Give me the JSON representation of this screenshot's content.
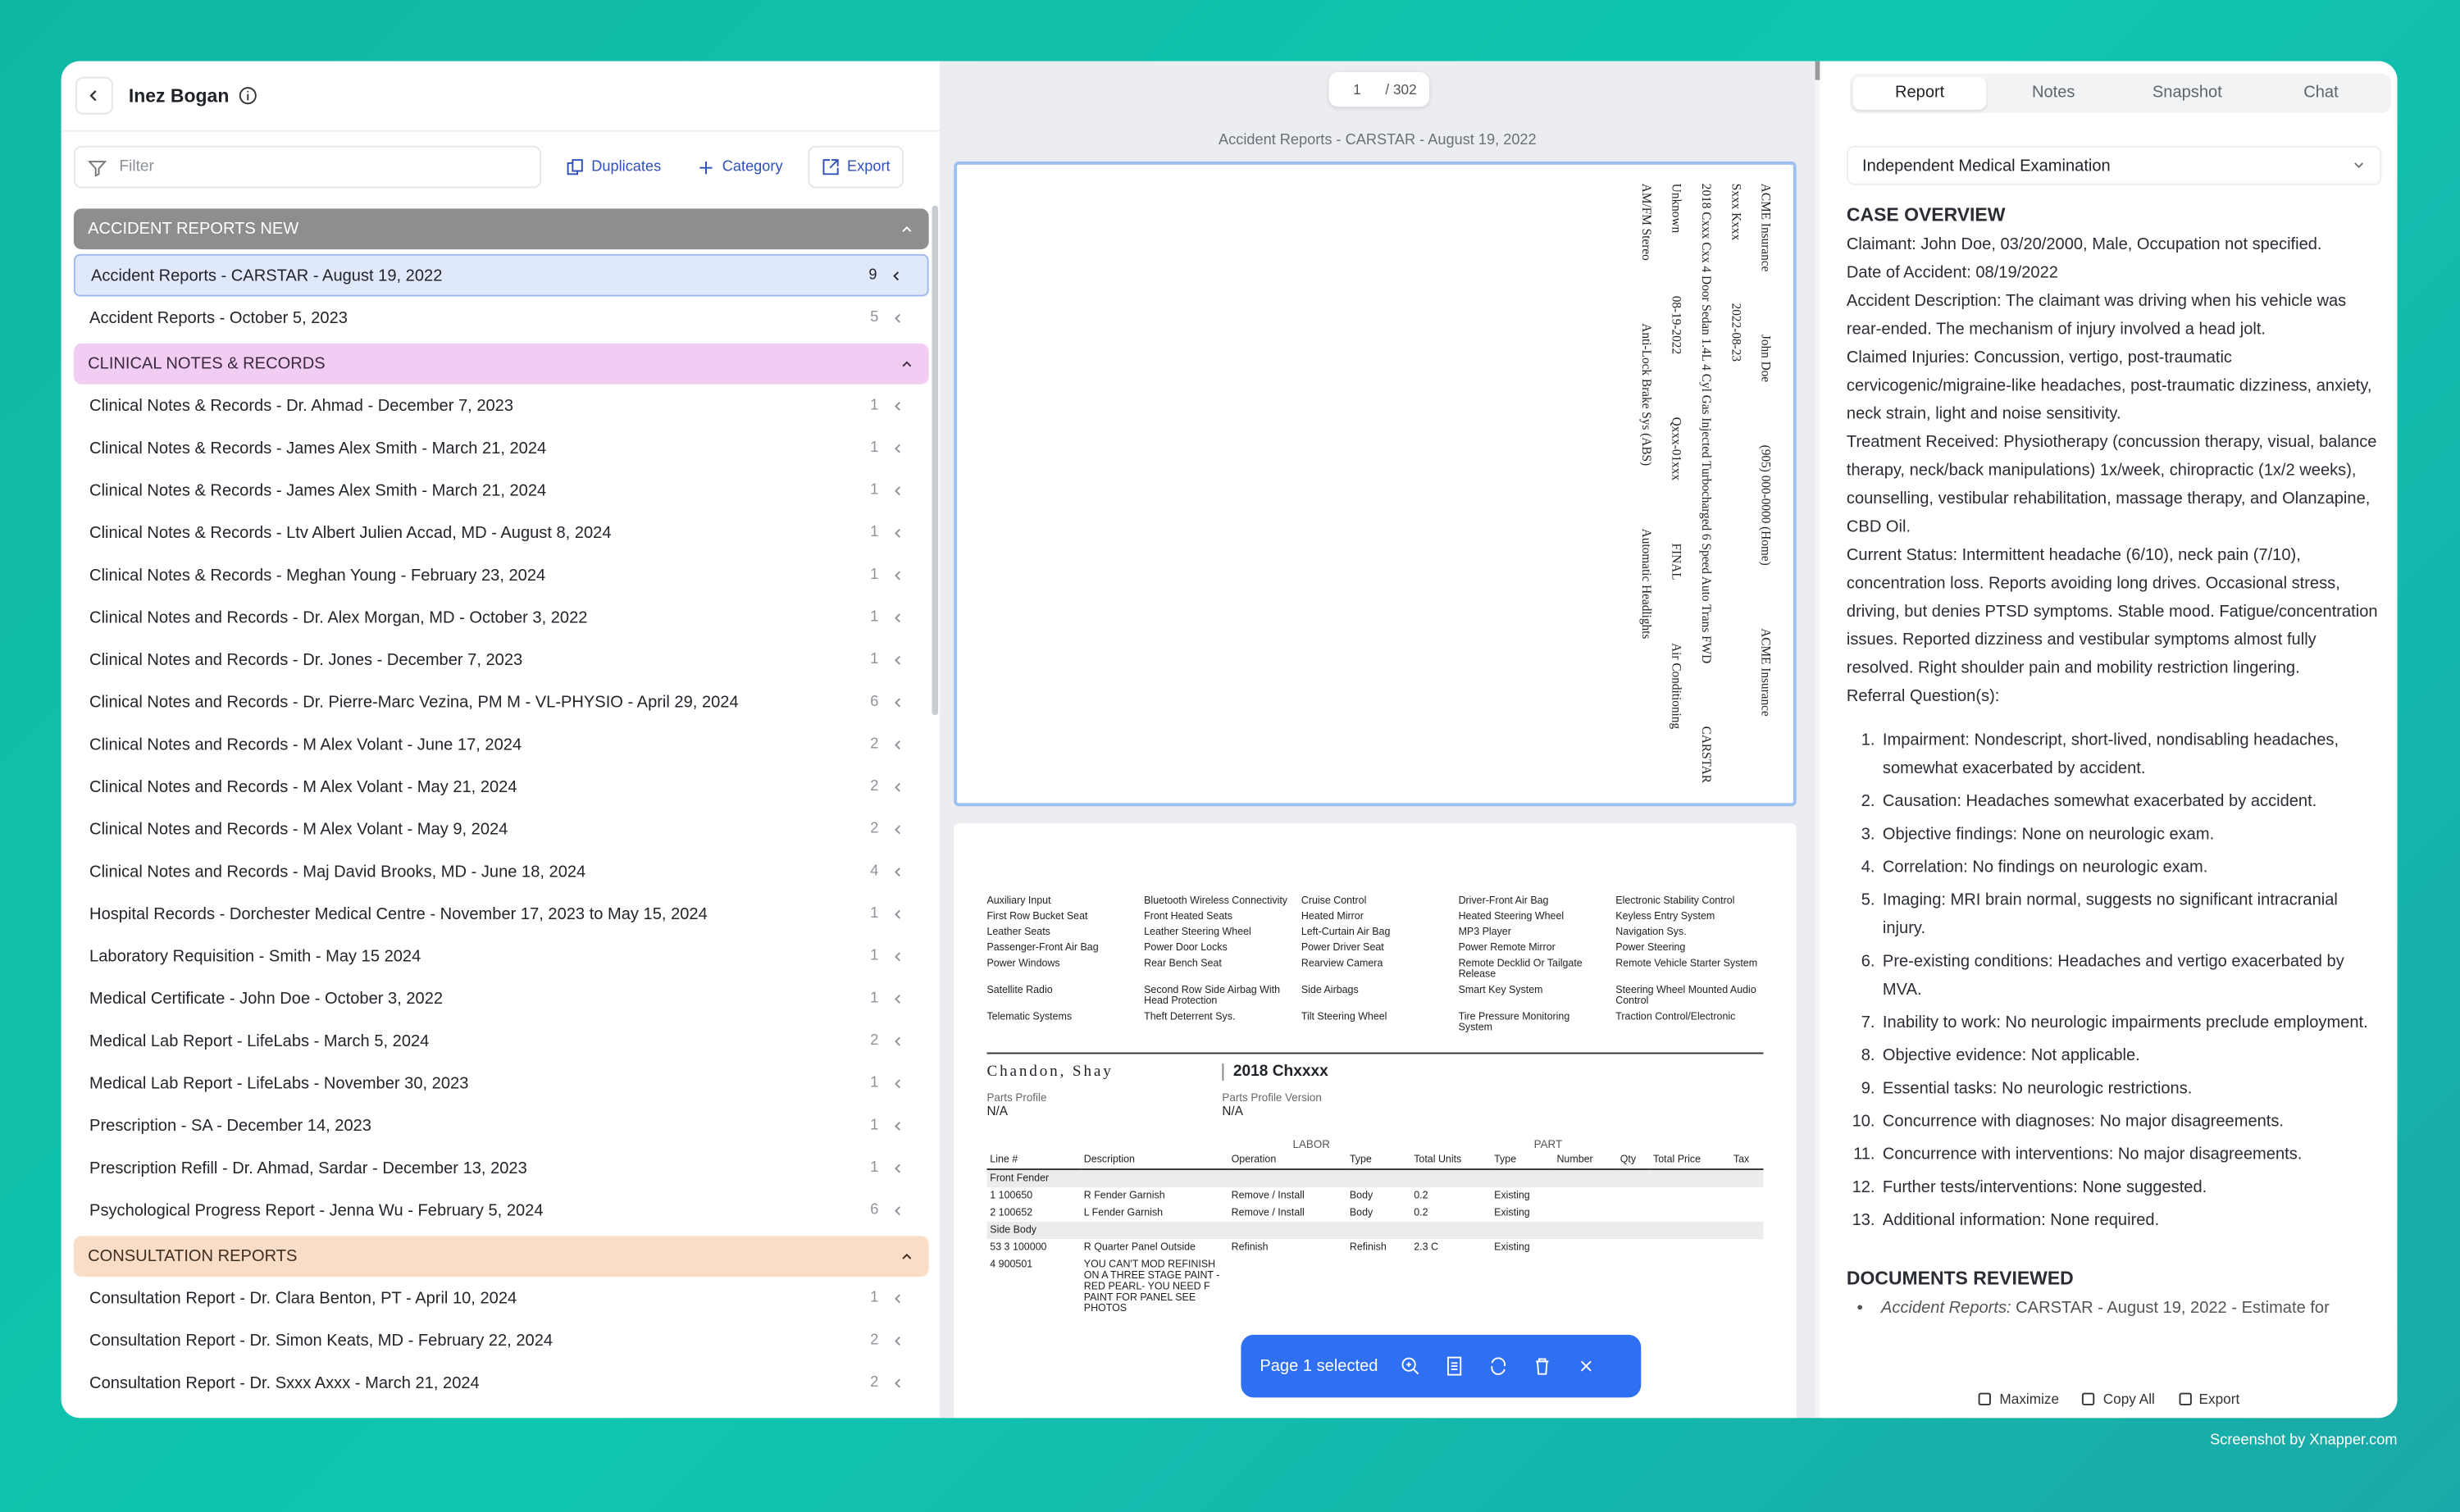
{
  "header": {
    "name": "Inez Bogan"
  },
  "toolbar": {
    "filter": "Filter",
    "duplicates": "Duplicates",
    "category": "Category",
    "export": "Export"
  },
  "groups": [
    {
      "title": "ACCIDENT REPORTS NEW",
      "color": "#8e8e8e",
      "text_color": "#ffffff",
      "items": [
        {
          "label": "Accident Reports - CARSTAR - August 19, 2022",
          "count": 9,
          "selected": true
        },
        {
          "label": "Accident Reports - October 5, 2023",
          "count": 5
        }
      ]
    },
    {
      "title": "CLINICAL NOTES & RECORDS",
      "color": "#f1cdf3",
      "text_color": "#3a2a3f",
      "items": [
        {
          "label": "Clinical Notes & Records - Dr. Ahmad - December 7, 2023",
          "count": 1
        },
        {
          "label": "Clinical Notes & Records - James Alex Smith - March 21, 2024",
          "count": 1
        },
        {
          "label": "Clinical Notes & Records - James Alex Smith - March 21, 2024",
          "count": 1
        },
        {
          "label": "Clinical Notes & Records - Ltv Albert Julien Accad, MD - August 8, 2024",
          "count": 1
        },
        {
          "label": "Clinical Notes & Records - Meghan Young - February 23, 2024",
          "count": 1
        },
        {
          "label": "Clinical Notes and Records - Dr. Alex Morgan, MD - October 3, 2022",
          "count": 1
        },
        {
          "label": "Clinical Notes and Records - Dr. Jones - December 7, 2023",
          "count": 1
        },
        {
          "label": "Clinical Notes and Records - Dr. Pierre-Marc Vezina, PM M - VL-PHYSIO - April 29, 2024",
          "count": 6
        },
        {
          "label": "Clinical Notes and Records - M Alex Volant - June 17, 2024",
          "count": 2
        },
        {
          "label": "Clinical Notes and Records - M Alex Volant - May 21, 2024",
          "count": 2
        },
        {
          "label": "Clinical Notes and Records - M Alex Volant - May 9, 2024",
          "count": 2
        },
        {
          "label": "Clinical Notes and Records - Maj David Brooks, MD - June 18, 2024",
          "count": 4
        },
        {
          "label": "Hospital Records - Dorchester Medical Centre - November 17, 2023 to May 15, 2024",
          "count": 1
        },
        {
          "label": "Laboratory Requisition - Smith - May 15 2024",
          "count": 1
        },
        {
          "label": "Medical Certificate - John Doe - October 3, 2022",
          "count": 1
        },
        {
          "label": "Medical Lab Report - LifeLabs - March 5, 2024",
          "count": 2
        },
        {
          "label": "Medical Lab Report - LifeLabs - November 30, 2023",
          "count": 1
        },
        {
          "label": "Prescription - SA - December 14, 2023",
          "count": 1
        },
        {
          "label": "Prescription Refill - Dr. Ahmad, Sardar - December 13, 2023",
          "count": 1
        },
        {
          "label": "Psychological Progress Report - Jenna Wu - February 5, 2024",
          "count": 6
        }
      ]
    },
    {
      "title": "CONSULTATION REPORTS",
      "color": "#f9ddc6",
      "text_color": "#3f2f22",
      "items": [
        {
          "label": "Consultation Report - Dr. Clara Benton, PT - April 10, 2024",
          "count": 1
        },
        {
          "label": "Consultation Report - Dr. Simon Keats, MD - February 22, 2024",
          "count": 2
        },
        {
          "label": "Consultation Report - Dr. Sxxx Axxx - March 21, 2024",
          "count": 2
        }
      ]
    }
  ],
  "viewer": {
    "page": "1",
    "total": "/ 302",
    "doc_title": "Accident Reports - CARSTAR - August 19, 2022",
    "page1_lines": [
      "ACME Insurance",
      "John Doe",
      "(905) 000-0000 (Home)",
      "ACME Insurance",
      "Sxxx Kxxx",
      "2022-08-23",
      "2018 Cxxx Cxx 4 Door Sedan 1.4L 4 Cyl Gas Injected Turbocharged 6 Speed Auto Trans FWD",
      "CARSTAR",
      "Unknown",
      "08-19-2022",
      "Qxxx-01xxx",
      "FINAL",
      "Air Conditioning",
      "AM/FM Stereo",
      "Anti-Lock Brake Sys (ABS)",
      "Automatic Headlights"
    ],
    "options": [
      "Auxiliary Input",
      "Bluetooth Wireless Connectivity",
      "Cruise Control",
      "Driver-Front Air Bag",
      "Electronic Stability Control",
      "First Row Bucket Seat",
      "Front Heated Seats",
      "Heated Mirror",
      "Heated Steering Wheel",
      "Keyless Entry System",
      "Leather Seats",
      "Leather Steering Wheel",
      "Left-Curtain Air Bag",
      "MP3 Player",
      "Navigation Sys.",
      "Passenger-Front Air Bag",
      "Power Door Locks",
      "Power Driver Seat",
      "Power Remote Mirror",
      "Power Steering",
      "Power Windows",
      "Rear Bench Seat",
      "Rearview Camera",
      "Remote Decklid Or Tailgate Release",
      "Remote Vehicle Starter System",
      "Satellite Radio",
      "Second Row Side Airbag With Head Protection",
      "Side Airbags",
      "Smart Key System",
      "Steering Wheel Mounted Audio Control",
      "Telematic Systems",
      "Theft Deterrent Sys.",
      "Tilt Steering Wheel",
      "Tire Pressure Monitoring System",
      "Traction Control/Electronic"
    ],
    "owner": "Chandon, Shay",
    "vehicle": "2018 Chxxxx",
    "profile_label": "Parts Profile",
    "profile_value": "N/A",
    "version_label": "Parts Profile Version",
    "version_value": "N/A",
    "labor": "LABOR",
    "part": "PART",
    "columns": [
      "Line #",
      "Description",
      "Operation",
      "Type",
      "Total Units",
      "Type",
      "Number",
      "Qty",
      "Total Price",
      "Tax"
    ],
    "rows": [
      {
        "section": "Front Fender"
      },
      {
        "cells": [
          "1",
          "100650",
          "R Fender Garnish",
          "Remove / Install",
          "Body",
          "0.2",
          "Existing"
        ]
      },
      {
        "cells": [
          "2",
          "100652",
          "L Fender Garnish",
          "Remove / Install",
          "Body",
          "0.2",
          "Existing"
        ]
      },
      {
        "section": "Side Body"
      },
      {
        "cells": [
          "53 3",
          "100000",
          "R Quarter Panel Outside",
          "Refinish",
          "Refinish",
          "2.3 C",
          "Existing"
        ]
      },
      {
        "cells": [
          "4",
          "900501",
          "YOU CAN'T MOD REFINISH ON A THREE STAGE PAINT - RED PEARL- YOU NEED F PAINT FOR PANEL SEE PHOTOS",
          "",
          "",
          "",
          ""
        ]
      }
    ],
    "selection": "Page 1 selected"
  },
  "report": {
    "tabs": [
      "Report",
      "Notes",
      "Snapshot",
      "Chat"
    ],
    "dropdown": "Independent Medical Examination",
    "overview_title": "CASE OVERVIEW",
    "overview": [
      "Claimant: John Doe, 03/20/2000, Male, Occupation not specified.",
      "Date of Accident: 08/19/2022",
      "Accident Description: The claimant was driving when his vehicle was rear-ended. The mechanism of injury involved a head jolt.",
      "Claimed Injuries: Concussion, vertigo, post-traumatic cervicogenic/migraine-like headaches, post-traumatic dizziness, anxiety, neck strain, light and noise sensitivity.",
      "Treatment Received: Physiotherapy (concussion therapy, visual, balance therapy, neck/back manipulations) 1x/week, chiropractic (1x/2 weeks), counselling, vestibular rehabilitation, massage therapy, and Olanzapine, CBD Oil.",
      "Current Status: Intermittent headache (6/10), neck pain (7/10), concentration loss. Reports avoiding long drives. Occasional stress, driving, but denies PTSD symptoms. Stable mood. Fatigue/concentration issues. Reported dizziness and vestibular symptoms almost fully resolved. Right shoulder pain and mobility restriction lingering.",
      "Referral Question(s):"
    ],
    "questions": [
      "Impairment: Nondescript, short-lived, nondisabling headaches, somewhat exacerbated by accident.",
      "Causation: Headaches somewhat exacerbated by accident.",
      "Objective findings: None on neurologic exam.",
      "Correlation: No findings on neurologic exam.",
      "Imaging: MRI brain normal, suggests no significant intracranial injury.",
      "Pre-existing conditions: Headaches and vertigo exacerbated by MVA.",
      "Inability to work: No neurologic impairments preclude employment.",
      "Objective evidence: Not applicable.",
      "Essential tasks: No neurologic restrictions.",
      "Concurrence with diagnoses: No major disagreements.",
      "Concurrence with interventions: No major disagreements.",
      "Further tests/interventions: None suggested.",
      "Additional information: None required."
    ],
    "reviewed_title": "DOCUMENTS REVIEWED",
    "reviewed_label": "Accident Reports:",
    "reviewed_text": "CARSTAR - August 19, 2022 - Estimate for",
    "footer": [
      "Maximize",
      "Copy All",
      "Export"
    ]
  },
  "watermark": "Screenshot by Xnapper.com"
}
